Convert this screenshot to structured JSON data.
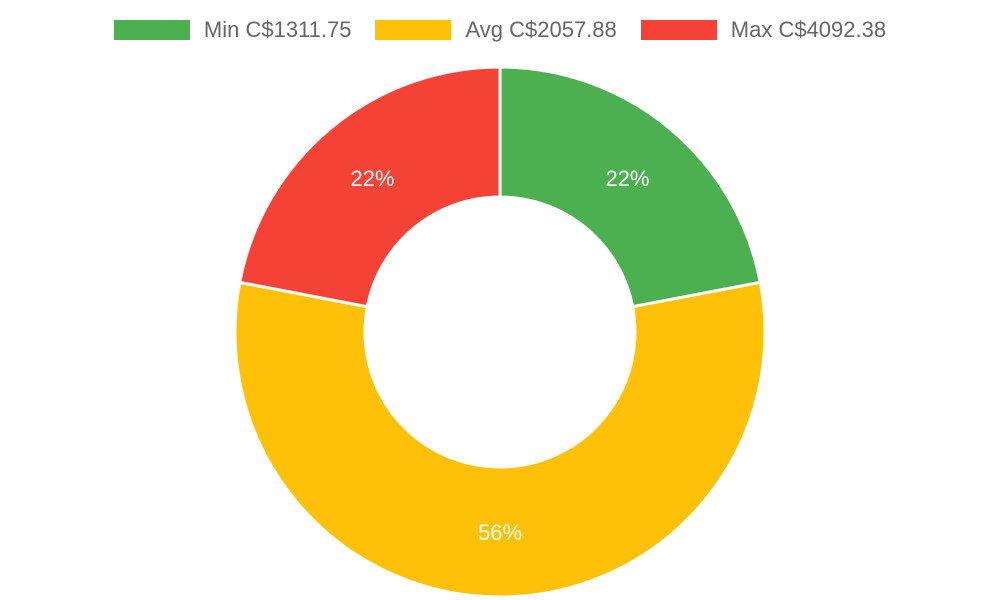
{
  "chart_data": {
    "type": "pie",
    "variant": "doughnut",
    "legend_position": "top",
    "categories": [
      "Min C$1311.75",
      "Avg C$2057.88",
      "Max C$4092.38"
    ],
    "values": [
      22,
      56,
      22
    ],
    "value_labels": [
      "22%",
      "56%",
      "22%"
    ],
    "colors": [
      "#4caf50",
      "#ffc107",
      "#f44336"
    ],
    "title": ""
  }
}
